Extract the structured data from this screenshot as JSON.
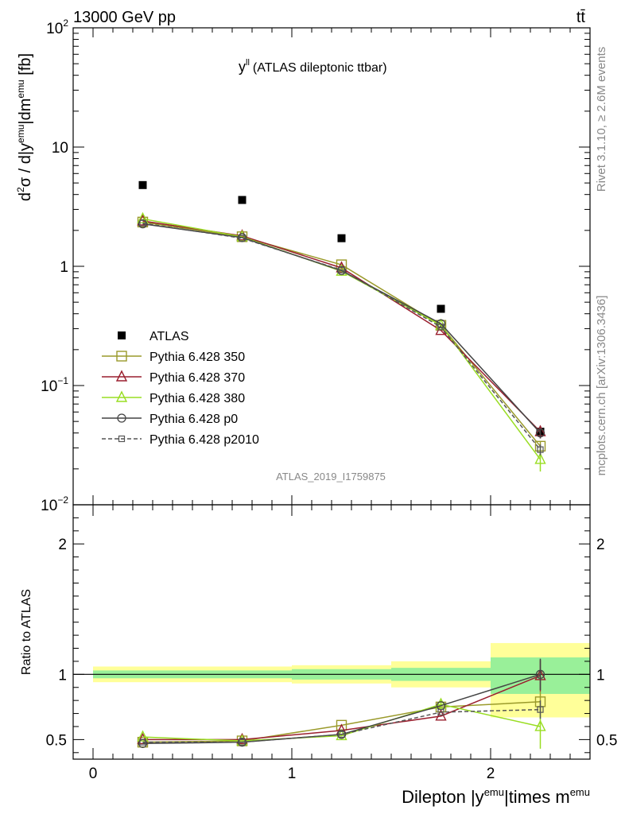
{
  "header": {
    "left": "13000 GeV pp",
    "right": "tt̄"
  },
  "side_texts": {
    "rivet": "Rivet 3.1.10, ≥ 2.6M events",
    "mcplots": "mcplots.cern.ch [arXiv:1306.3436]"
  },
  "chart_data": [
    {
      "type": "scatter",
      "title_main": "y",
      "title_sup": "ll",
      "title_rest": "(ATLAS dileptonic ttbar)",
      "watermark": "ATLAS_2019_I1759875",
      "ylabel": {
        "a": "d",
        "a_sup": "2",
        "b": "σ / d|y",
        "b_sup": "emu",
        "c": "|dm",
        "c_sup": "emu",
        "d": " [fb]"
      },
      "yscale": "log",
      "ylim": [
        0.01,
        100
      ],
      "xlim": [
        -0.1,
        2.5
      ],
      "y_ticks": [
        {
          "value": 100,
          "base": "10",
          "exp": "2"
        },
        {
          "value": 10,
          "base": "10",
          "exp": ""
        },
        {
          "value": 1,
          "base": "1",
          "exp": ""
        },
        {
          "value": 0.1,
          "base": "10",
          "exp": "−1"
        },
        {
          "value": 0.01,
          "base": "10",
          "exp": "−2"
        }
      ],
      "x": [
        0.25,
        0.75,
        1.25,
        1.75,
        2.25
      ],
      "legend_position": "lower-left",
      "series": [
        {
          "name": "ATLAS",
          "color": "#000000",
          "marker": "filled-square",
          "dash": false,
          "values": [
            4.8,
            3.6,
            1.72,
            0.44,
            0.041
          ],
          "errors": [
            0,
            0,
            0,
            0,
            0.004
          ]
        },
        {
          "name": "Pythia 6.428 350",
          "color": "#9a9a2a",
          "marker": "open-square",
          "dash": false,
          "values": [
            2.35,
            1.77,
            1.03,
            0.32,
            0.031
          ],
          "errors": [
            0,
            0,
            0,
            0,
            0.003
          ]
        },
        {
          "name": "Pythia 6.428 370",
          "color": "#9a1f2e",
          "marker": "open-triangle",
          "dash": false,
          "values": [
            2.4,
            1.8,
            0.97,
            0.29,
            0.041
          ],
          "errors": [
            0,
            0,
            0,
            0,
            0.005
          ]
        },
        {
          "name": "Pythia 6.428 380",
          "color": "#99dd22",
          "marker": "open-triangle",
          "dash": false,
          "values": [
            2.5,
            1.77,
            0.91,
            0.32,
            0.024
          ],
          "errors": [
            0,
            0,
            0,
            0,
            0.005
          ]
        },
        {
          "name": "Pythia 6.428 p0",
          "color": "#444444",
          "marker": "open-circle",
          "dash": false,
          "values": [
            2.27,
            1.74,
            0.92,
            0.33,
            0.04
          ],
          "errors": [
            0,
            0,
            0,
            0,
            0.004
          ]
        },
        {
          "name": "Pythia 6.428 p2010",
          "color": "#555555",
          "marker": "small-square",
          "dash": true,
          "values": [
            2.3,
            1.72,
            0.93,
            0.31,
            0.029
          ],
          "errors": [
            0,
            0,
            0,
            0,
            0.003
          ]
        }
      ]
    },
    {
      "type": "scatter",
      "ylabel": "Ratio to ATLAS",
      "xlabel": {
        "a": "Dilepton |y",
        "a_sup": "emu",
        "b": "|times m",
        "b_sup": "emu"
      },
      "ylim": [
        0.35,
        2.3
      ],
      "xlim": [
        -0.1,
        2.5
      ],
      "x_ticks": [
        0,
        1,
        2
      ],
      "x_tick_labels": [
        "0",
        "1",
        "2"
      ],
      "y_ticks": [
        0.5,
        1,
        2
      ],
      "y_tick_labels": [
        "0.5",
        "1",
        "2"
      ],
      "bands": [
        {
          "x0": 0,
          "x1": 1,
          "inner": [
            0.97,
            1.03
          ],
          "outer": [
            0.94,
            1.06
          ]
        },
        {
          "x0": 1,
          "x1": 1.5,
          "inner": [
            0.96,
            1.04
          ],
          "outer": [
            0.93,
            1.07
          ]
        },
        {
          "x0": 1.5,
          "x1": 2,
          "inner": [
            0.95,
            1.05
          ],
          "outer": [
            0.9,
            1.1
          ]
        },
        {
          "x0": 2,
          "x1": 2.5,
          "inner": [
            0.85,
            1.13
          ],
          "outer": [
            0.67,
            1.24
          ]
        }
      ],
      "band_colors": {
        "inner": "#99f099",
        "outer": "#ffff99"
      },
      "x": [
        0.25,
        0.75,
        1.25,
        1.75,
        2.25
      ],
      "series": [
        {
          "name": "Pythia 6.428 350",
          "color": "#9a9a2a",
          "marker": "open-square",
          "dash": false,
          "values": [
            0.48,
            0.49,
            0.61,
            0.75,
            0.79
          ],
          "errors": [
            0,
            0,
            0,
            0,
            0.08
          ]
        },
        {
          "name": "Pythia 6.428 370",
          "color": "#9a1f2e",
          "marker": "open-triangle",
          "dash": false,
          "values": [
            0.5,
            0.5,
            0.57,
            0.68,
            0.99
          ],
          "errors": [
            0,
            0,
            0,
            0,
            0.12
          ]
        },
        {
          "name": "Pythia 6.428 380",
          "color": "#99dd22",
          "marker": "open-triangle",
          "dash": false,
          "values": [
            0.52,
            0.49,
            0.53,
            0.77,
            0.6
          ],
          "errors": [
            0,
            0,
            0,
            0.03,
            0.17
          ]
        },
        {
          "name": "Pythia 6.428 p0",
          "color": "#444444",
          "marker": "open-circle",
          "dash": false,
          "values": [
            0.47,
            0.48,
            0.54,
            0.76,
            1.0
          ],
          "errors": [
            0,
            0,
            0,
            0,
            0.12
          ]
        },
        {
          "name": "Pythia 6.428 p2010",
          "color": "#555555",
          "marker": "small-square",
          "dash": true,
          "values": [
            0.48,
            0.48,
            0.54,
            0.71,
            0.73
          ],
          "errors": [
            0,
            0,
            0,
            0,
            0.07
          ]
        }
      ]
    }
  ]
}
